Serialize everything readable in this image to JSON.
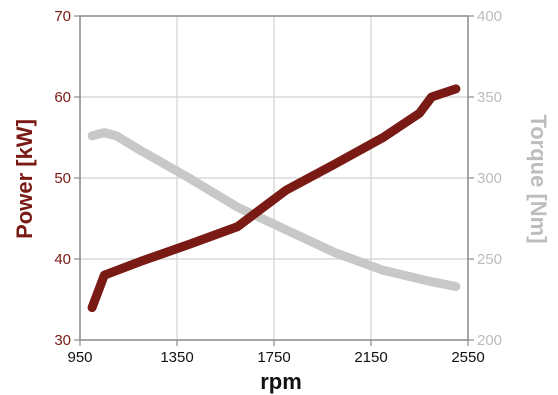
{
  "chart_data": {
    "type": "line",
    "xlabel": "rpm",
    "x_ticks": [
      "950",
      "1350",
      "1750",
      "2150",
      "2550"
    ],
    "xlim": [
      950,
      2550
    ],
    "y_left": {
      "label": "Power [kW]",
      "ticks": [
        "30",
        "40",
        "50",
        "60",
        "70"
      ],
      "ylim": [
        30,
        70
      ],
      "color": "#7a1a14"
    },
    "y_right": {
      "label": "Torque [Nm]",
      "ticks": [
        "200",
        "250",
        "300",
        "350",
        "400"
      ],
      "ylim": [
        200,
        400
      ],
      "color": "#c8c8c8"
    },
    "grid": true,
    "series": [
      {
        "axis": "left",
        "color": "#7a1a14",
        "x": [
          1000,
          1050,
          1200,
          1400,
          1600,
          1800,
          2000,
          2200,
          2350,
          2400,
          2500
        ],
        "y": [
          34,
          38,
          39.7,
          41.8,
          44,
          48.5,
          51.7,
          55,
          58,
          60,
          61
        ]
      },
      {
        "axis": "right",
        "color": "#c8c8c8",
        "x": [
          1000,
          1050,
          1100,
          1200,
          1400,
          1600,
          1800,
          2000,
          2200,
          2400,
          2500
        ],
        "y": [
          326,
          328,
          326,
          317,
          300,
          282,
          268,
          254,
          243,
          236,
          233
        ]
      }
    ]
  }
}
